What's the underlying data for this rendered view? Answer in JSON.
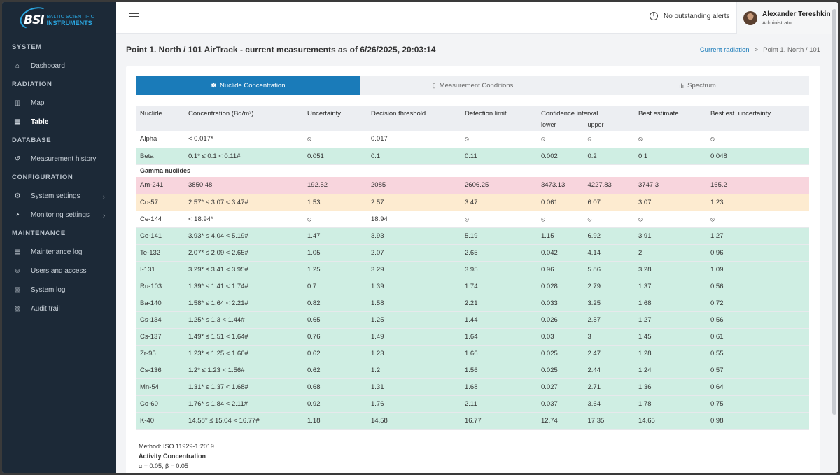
{
  "brand": {
    "mark": "BSI",
    "line1": "BALTIC SCIENTIFIC",
    "line2": "INSTRUMENTS"
  },
  "sidebar": {
    "sections": [
      {
        "title": "SYSTEM",
        "items": [
          {
            "label": "Dashboard",
            "icon": "home-icon"
          }
        ]
      },
      {
        "title": "RADIATION",
        "items": [
          {
            "label": "Map",
            "icon": "map-icon"
          },
          {
            "label": "Table",
            "icon": "chart-icon",
            "active": true
          }
        ]
      },
      {
        "title": "DATABASE",
        "items": [
          {
            "label": "Measurement history",
            "icon": "history-icon"
          }
        ]
      },
      {
        "title": "CONFIGURATION",
        "items": [
          {
            "label": "System settings",
            "icon": "settings-icon",
            "chevron": true
          },
          {
            "label": "Monitoring settings",
            "icon": "gauge-icon",
            "chevron": true
          }
        ]
      },
      {
        "title": "MAINTENANCE",
        "items": [
          {
            "label": "Maintenance log",
            "icon": "log-icon"
          },
          {
            "label": "Users and access",
            "icon": "users-icon"
          },
          {
            "label": "System log",
            "icon": "file-icon"
          },
          {
            "label": "Audit trail",
            "icon": "audit-icon"
          }
        ]
      }
    ]
  },
  "topbar": {
    "alerts": "No outstanding alerts",
    "user_name": "Alexander Tereshkin",
    "user_role": "Administrator"
  },
  "page": {
    "title": "Point 1. North / 101 AirTrack - current measurements as of 6/26/2025, 20:03:14",
    "breadcrumb_link": "Current radiation",
    "breadcrumb_sep": ">",
    "breadcrumb_current": "Point 1. North / 101"
  },
  "tabs": [
    {
      "label": "Nuclide Concentration",
      "icon": "✽",
      "active": true
    },
    {
      "label": "Measurement Conditions",
      "icon": "▯"
    },
    {
      "label": "Spectrum",
      "icon": "ılı"
    }
  ],
  "table": {
    "headers": {
      "nuclide": "Nuclide",
      "concentration": "Concentration (Bq/m³)",
      "uncertainty": "Uncertainty",
      "decision": "Decision threshold",
      "detection": "Detection limit",
      "confidence": "Confidence interval",
      "lower": "lower",
      "upper": "upper",
      "best": "Best estimate",
      "best_unc": "Best est. uncertainty"
    },
    "gamma_label": "Gamma nuclides",
    "na_symbol": "⦸",
    "rows": [
      {
        "group": "pre",
        "status": "none",
        "cells": [
          "Alpha",
          "< 0.017*",
          "⦸",
          "0.017",
          "⦸",
          "⦸",
          "⦸",
          "⦸",
          "⦸"
        ]
      },
      {
        "group": "pre",
        "status": "ok",
        "cells": [
          "Beta",
          "0.1* ≤ 0.1 < 0.11#",
          "0.051",
          "0.1",
          "0.11",
          "0.002",
          "0.2",
          "0.1",
          "0.048"
        ]
      },
      {
        "group": "gamma",
        "status": "red",
        "cells": [
          "Am-241",
          "3850.48",
          "192.52",
          "2085",
          "2606.25",
          "3473.13",
          "4227.83",
          "3747.3",
          "165.2"
        ]
      },
      {
        "group": "gamma",
        "status": "warn",
        "cells": [
          "Co-57",
          "2.57* ≤ 3.07 < 3.47#",
          "1.53",
          "2.57",
          "3.47",
          "0.061",
          "6.07",
          "3.07",
          "1.23"
        ]
      },
      {
        "group": "gamma",
        "status": "none",
        "cells": [
          "Ce-144",
          "< 18.94*",
          "⦸",
          "18.94",
          "⦸",
          "⦸",
          "⦸",
          "⦸",
          "⦸"
        ]
      },
      {
        "group": "gamma",
        "status": "ok",
        "cells": [
          "Ce-141",
          "3.93* ≤ 4.04 < 5.19#",
          "1.47",
          "3.93",
          "5.19",
          "1.15",
          "6.92",
          "3.91",
          "1.27"
        ]
      },
      {
        "group": "gamma",
        "status": "ok",
        "cells": [
          "Te-132",
          "2.07* ≤ 2.09 < 2.65#",
          "1.05",
          "2.07",
          "2.65",
          "0.042",
          "4.14",
          "2",
          "0.96"
        ]
      },
      {
        "group": "gamma",
        "status": "ok",
        "cells": [
          "I-131",
          "3.29* ≤ 3.41 < 3.95#",
          "1.25",
          "3.29",
          "3.95",
          "0.96",
          "5.86",
          "3.28",
          "1.09"
        ]
      },
      {
        "group": "gamma",
        "status": "ok",
        "cells": [
          "Ru-103",
          "1.39* ≤ 1.41 < 1.74#",
          "0.7",
          "1.39",
          "1.74",
          "0.028",
          "2.79",
          "1.37",
          "0.56"
        ]
      },
      {
        "group": "gamma",
        "status": "ok",
        "cells": [
          "Ba-140",
          "1.58* ≤ 1.64 < 2.21#",
          "0.82",
          "1.58",
          "2.21",
          "0.033",
          "3.25",
          "1.68",
          "0.72"
        ]
      },
      {
        "group": "gamma",
        "status": "ok",
        "cells": [
          "Cs-134",
          "1.25* ≤ 1.3 < 1.44#",
          "0.65",
          "1.25",
          "1.44",
          "0.026",
          "2.57",
          "1.27",
          "0.56"
        ]
      },
      {
        "group": "gamma",
        "status": "ok",
        "cells": [
          "Cs-137",
          "1.49* ≤ 1.51 < 1.64#",
          "0.76",
          "1.49",
          "1.64",
          "0.03",
          "3",
          "1.45",
          "0.61"
        ]
      },
      {
        "group": "gamma",
        "status": "ok",
        "cells": [
          "Zr-95",
          "1.23* ≤ 1.25 < 1.66#",
          "0.62",
          "1.23",
          "1.66",
          "0.025",
          "2.47",
          "1.28",
          "0.55"
        ]
      },
      {
        "group": "gamma",
        "status": "ok",
        "cells": [
          "Cs-136",
          "1.2* ≤ 1.23 < 1.56#",
          "0.62",
          "1.2",
          "1.56",
          "0.025",
          "2.44",
          "1.24",
          "0.57"
        ]
      },
      {
        "group": "gamma",
        "status": "ok",
        "cells": [
          "Mn-54",
          "1.31* ≤ 1.37 < 1.68#",
          "0.68",
          "1.31",
          "1.68",
          "0.027",
          "2.71",
          "1.36",
          "0.64"
        ]
      },
      {
        "group": "gamma",
        "status": "ok",
        "cells": [
          "Co-60",
          "1.76* ≤ 1.84 < 2.11#",
          "0.92",
          "1.76",
          "2.11",
          "0.037",
          "3.64",
          "1.78",
          "0.75"
        ]
      },
      {
        "group": "gamma",
        "status": "ok",
        "cells": [
          "K-40",
          "14.58* ≤ 15.04 < 16.77#",
          "1.18",
          "14.58",
          "16.77",
          "12.74",
          "17.35",
          "14.65",
          "0.98"
        ]
      }
    ]
  },
  "footer": {
    "method": "Method: ISO 11929-1:2019",
    "activity": "Activity Concentration",
    "params": "α = 0.05, β = 0.05"
  },
  "colors": {
    "accent": "#1a7bb9",
    "sidebar": "#1c2937",
    "ok": "#cfeee3",
    "alarm": "#f8d5dd",
    "warning": "#fdebd0"
  }
}
